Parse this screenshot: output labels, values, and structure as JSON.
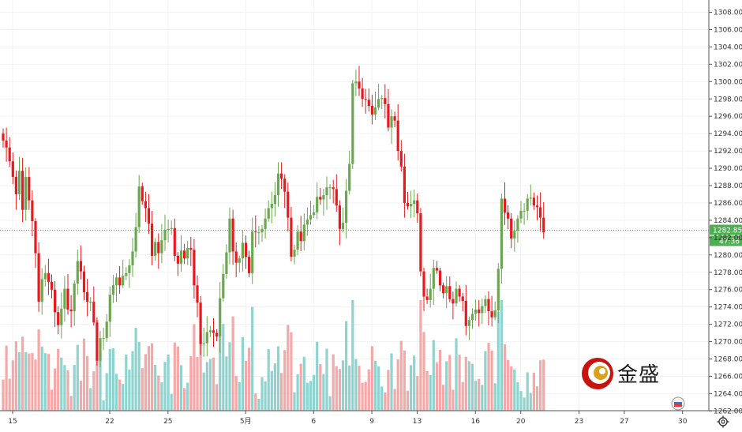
{
  "chart_data": {
    "type": "candlestick",
    "y_range": [
      1262,
      1308
    ],
    "y_ticks": [
      "1308.00",
      "1306.00",
      "1304.00",
      "1302.00",
      "1300.00",
      "1298.00",
      "1296.00",
      "1294.00",
      "1292.00",
      "1290.00",
      "1288.00",
      "1286.00",
      "1284.00",
      "1282.00",
      "1280.00",
      "1278.00",
      "1276.00",
      "1274.00",
      "1272.00",
      "1270.00",
      "1268.00",
      "1266.00",
      "1264.00",
      "1262.00"
    ],
    "y_tick_values": [
      1308,
      1306,
      1304,
      1302,
      1300,
      1298,
      1296,
      1294,
      1292,
      1290,
      1288,
      1286,
      1284,
      1282,
      1280,
      1278,
      1276,
      1274,
      1272,
      1270,
      1268,
      1266,
      1264,
      1262
    ],
    "x_ticks": [
      {
        "label": "15",
        "index": 0
      },
      {
        "label": "22",
        "index": 30
      },
      {
        "label": "25",
        "index": 48
      },
      {
        "label": "5月",
        "index": 72
      },
      {
        "label": "6",
        "index": 93
      },
      {
        "label": "9",
        "index": 111
      },
      {
        "label": "13",
        "index": 125
      },
      {
        "label": "16",
        "index": 143
      },
      {
        "label": "20",
        "index": 157
      },
      {
        "label": "23",
        "index": 175
      },
      {
        "label": "27",
        "index": 189
      },
      {
        "label": "30",
        "index": 207
      }
    ],
    "current_price": "1282.85",
    "countdown": "47:36",
    "up_color": "#6aa84f",
    "down_color": "#e8191c",
    "vol_up_color": "#8fd3cf",
    "vol_down_color": "#f4a9a8",
    "price_label_color": "#4caf50",
    "closes": [
      1293.2,
      1292.4,
      1290.8,
      1289.0,
      1287.0,
      1289.7,
      1285.2,
      1289.0,
      1286.3,
      1283.9,
      1280.2,
      1274.6,
      1277.2,
      1277.9,
      1276.9,
      1276.0,
      1273.4,
      1271.9,
      1273.8,
      1276.1,
      1273.7,
      1273.5,
      1276.7,
      1279.3,
      1278.1,
      1275.7,
      1274.6,
      1274.6,
      1272.2,
      1267.8,
      1270.4,
      1270.4,
      1272.3,
      1275.4,
      1276.5,
      1277.4,
      1276.5,
      1277.6,
      1277.9,
      1278.8,
      1280.4,
      1283.2,
      1287.9,
      1286.2,
      1285.4,
      1283.6,
      1279.9,
      1281.5,
      1280.2,
      1281.7,
      1282.9,
      1283.0,
      1283.1,
      1279.9,
      1279.0,
      1280.5,
      1279.6,
      1280.8,
      1280.6,
      1276.5,
      1274.5,
      1269.7,
      1269.8,
      1271.1,
      1271.3,
      1271.0,
      1270.6,
      1275.0,
      1277.8,
      1280.3,
      1284.2,
      1280.4,
      1279.1,
      1279.6,
      1281.4,
      1279.8,
      1277.9,
      1282.7,
      1282.6,
      1282.6,
      1283.0,
      1284.2,
      1285.4,
      1285.9,
      1286.9,
      1289.4,
      1288.8,
      1287.3,
      1284.3,
      1279.8,
      1280.6,
      1282.7,
      1281.6,
      1283.5,
      1284.1,
      1284.6,
      1284.9,
      1286.7,
      1286.4,
      1286.9,
      1287.8,
      1287.8,
      1287.6,
      1285.7,
      1283.0,
      1283.7,
      1287.4,
      1290.5,
      1299.8,
      1300.0,
      1299.2,
      1298.0,
      1297.9,
      1297.2,
      1296.2,
      1297.0,
      1298.0,
      1298.1,
      1297.4,
      1294.7,
      1296.0,
      1295.5,
      1292.0,
      1290.2,
      1286.0,
      1285.6,
      1285.9,
      1286.3,
      1284.8,
      1278.1,
      1275.2,
      1274.8,
      1276.1,
      1278.5,
      1278.2,
      1276.5,
      1275.6,
      1276.4,
      1274.9,
      1274.4,
      1276.1,
      1275.2,
      1274.7,
      1271.8,
      1272.5,
      1273.2,
      1273.7,
      1273.3,
      1274.1,
      1274.9,
      1273.5,
      1272.8,
      1273.6,
      1278.4,
      1286.5,
      1284.9,
      1284.2,
      1281.9,
      1282.8,
      1284.2,
      1285.1,
      1285.1,
      1286.5,
      1286.6,
      1285.7,
      1285.5,
      1284.3,
      1282.6
    ],
    "opens": [
      1294.0,
      1293.2,
      1292.4,
      1290.8,
      1289.0,
      1287.0,
      1289.7,
      1285.2,
      1289.0,
      1286.3,
      1283.9,
      1280.2,
      1274.6,
      1277.2,
      1277.9,
      1276.9,
      1276.0,
      1273.4,
      1271.9,
      1273.8,
      1276.1,
      1273.7,
      1273.5,
      1276.7,
      1279.3,
      1278.1,
      1275.7,
      1274.6,
      1274.6,
      1272.2,
      1267.8,
      1270.4,
      1270.4,
      1272.3,
      1275.4,
      1276.5,
      1277.4,
      1276.5,
      1277.6,
      1277.9,
      1278.8,
      1280.4,
      1283.2,
      1287.9,
      1286.2,
      1285.4,
      1283.6,
      1279.9,
      1281.5,
      1280.2,
      1281.7,
      1282.9,
      1283.0,
      1283.1,
      1279.9,
      1279.0,
      1280.5,
      1279.6,
      1280.8,
      1280.6,
      1276.5,
      1274.5,
      1269.7,
      1269.8,
      1271.1,
      1271.3,
      1271.0,
      1270.6,
      1275.0,
      1277.8,
      1280.3,
      1284.2,
      1280.4,
      1279.1,
      1279.6,
      1281.4,
      1279.8,
      1277.9,
      1282.7,
      1282.6,
      1282.6,
      1283.0,
      1284.2,
      1285.4,
      1285.9,
      1286.9,
      1289.4,
      1288.8,
      1287.3,
      1284.3,
      1279.8,
      1280.6,
      1282.7,
      1281.6,
      1283.5,
      1284.1,
      1284.6,
      1284.9,
      1286.7,
      1286.4,
      1286.9,
      1287.8,
      1287.8,
      1287.6,
      1285.7,
      1283.0,
      1283.7,
      1287.4,
      1290.5,
      1299.8,
      1300.0,
      1299.2,
      1298.0,
      1297.9,
      1297.2,
      1296.2,
      1297.0,
      1298.0,
      1298.1,
      1297.4,
      1294.7,
      1296.0,
      1295.5,
      1292.0,
      1290.2,
      1286.0,
      1285.6,
      1285.9,
      1286.3,
      1284.8,
      1278.1,
      1275.2,
      1274.8,
      1276.1,
      1278.5,
      1278.2,
      1276.5,
      1275.6,
      1276.4,
      1274.9,
      1274.4,
      1276.1,
      1275.2,
      1274.7,
      1271.8,
      1272.5,
      1273.2,
      1273.7,
      1273.3,
      1274.1,
      1274.9,
      1273.5,
      1272.8,
      1273.6,
      1278.4,
      1286.5,
      1284.9,
      1284.2,
      1281.9,
      1282.8,
      1284.2,
      1285.1,
      1285.1,
      1286.5,
      1286.6,
      1285.7,
      1285.5,
      1284.3
    ]
  }
}
